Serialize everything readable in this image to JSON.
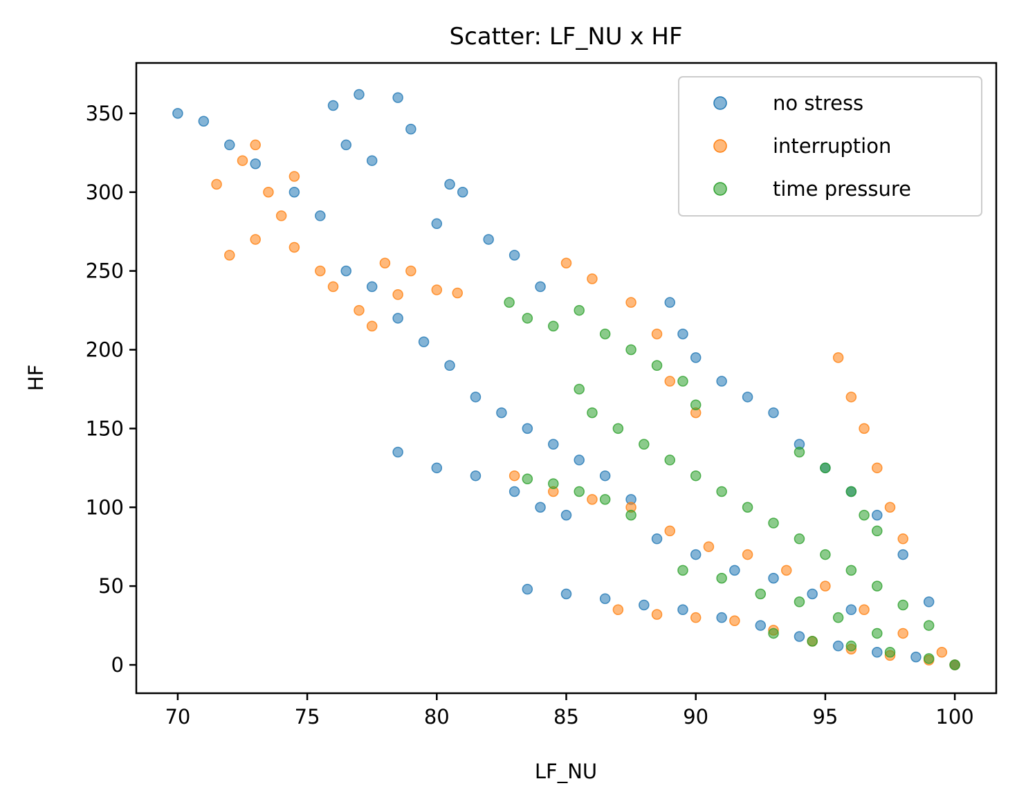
{
  "chart_data": {
    "type": "scatter",
    "title": "Scatter: LF_NU x HF",
    "xlabel": "LF_NU",
    "ylabel": "HF",
    "xlim": [
      68.4,
      101.6
    ],
    "ylim": [
      -18,
      382
    ],
    "x_ticks": [
      70,
      75,
      80,
      85,
      90,
      95,
      100
    ],
    "x_tick_labels": [
      "70",
      "75",
      "80",
      "85",
      "90",
      "95",
      "100"
    ],
    "y_ticks": [
      0,
      50,
      100,
      150,
      200,
      250,
      300,
      350
    ],
    "y_tick_labels": [
      "0",
      "50",
      "100",
      "150",
      "200",
      "250",
      "300",
      "350"
    ],
    "grid": false,
    "legend_position": "top-right",
    "series": [
      {
        "name": "no stress",
        "color": "#1f77b4",
        "points": [
          [
            70.0,
            350
          ],
          [
            71.0,
            345
          ],
          [
            72.0,
            330
          ],
          [
            73.0,
            318
          ],
          [
            74.5,
            300
          ],
          [
            75.5,
            285
          ],
          [
            76.0,
            355
          ],
          [
            77.0,
            362
          ],
          [
            76.5,
            330
          ],
          [
            77.5,
            320
          ],
          [
            78.5,
            360
          ],
          [
            79.0,
            340
          ],
          [
            80.5,
            305
          ],
          [
            81.0,
            300
          ],
          [
            80.0,
            280
          ],
          [
            82.0,
            270
          ],
          [
            83.0,
            260
          ],
          [
            84.0,
            240
          ],
          [
            76.5,
            250
          ],
          [
            77.5,
            240
          ],
          [
            78.5,
            220
          ],
          [
            79.5,
            205
          ],
          [
            80.5,
            190
          ],
          [
            81.5,
            170
          ],
          [
            82.5,
            160
          ],
          [
            83.5,
            150
          ],
          [
            84.5,
            140
          ],
          [
            85.5,
            130
          ],
          [
            86.5,
            120
          ],
          [
            87.5,
            105
          ],
          [
            89.0,
            230
          ],
          [
            89.5,
            210
          ],
          [
            90.0,
            195
          ],
          [
            91.0,
            180
          ],
          [
            92.0,
            170
          ],
          [
            93.0,
            160
          ],
          [
            94.0,
            140
          ],
          [
            95.0,
            125
          ],
          [
            96.0,
            110
          ],
          [
            97.0,
            95
          ],
          [
            98.0,
            70
          ],
          [
            99.0,
            40
          ],
          [
            78.5,
            135
          ],
          [
            80.0,
            125
          ],
          [
            81.5,
            120
          ],
          [
            83.0,
            110
          ],
          [
            84.0,
            100
          ],
          [
            85.0,
            95
          ],
          [
            83.5,
            48
          ],
          [
            85.0,
            45
          ],
          [
            86.5,
            42
          ],
          [
            88.0,
            38
          ],
          [
            89.5,
            35
          ],
          [
            91.0,
            30
          ],
          [
            92.5,
            25
          ],
          [
            94.0,
            18
          ],
          [
            95.5,
            12
          ],
          [
            97.0,
            8
          ],
          [
            98.5,
            5
          ],
          [
            100.0,
            0
          ],
          [
            88.5,
            80
          ],
          [
            90.0,
            70
          ],
          [
            91.5,
            60
          ],
          [
            93.0,
            55
          ],
          [
            94.5,
            45
          ],
          [
            96.0,
            35
          ]
        ]
      },
      {
        "name": "interruption",
        "color": "#ff7f0e",
        "points": [
          [
            71.5,
            305
          ],
          [
            72.5,
            320
          ],
          [
            73.0,
            330
          ],
          [
            73.5,
            300
          ],
          [
            74.0,
            285
          ],
          [
            74.5,
            310
          ],
          [
            72.0,
            260
          ],
          [
            73.0,
            270
          ],
          [
            74.5,
            265
          ],
          [
            75.5,
            250
          ],
          [
            76.0,
            240
          ],
          [
            77.0,
            225
          ],
          [
            77.5,
            215
          ],
          [
            78.0,
            255
          ],
          [
            79.0,
            250
          ],
          [
            80.0,
            238
          ],
          [
            80.8,
            236
          ],
          [
            78.5,
            235
          ],
          [
            85.0,
            255
          ],
          [
            86.0,
            245
          ],
          [
            87.5,
            230
          ],
          [
            88.5,
            210
          ],
          [
            89.0,
            180
          ],
          [
            90.0,
            160
          ],
          [
            83.0,
            120
          ],
          [
            84.5,
            110
          ],
          [
            86.0,
            105
          ],
          [
            87.5,
            100
          ],
          [
            89.0,
            85
          ],
          [
            90.5,
            75
          ],
          [
            92.0,
            70
          ],
          [
            93.5,
            60
          ],
          [
            95.0,
            50
          ],
          [
            96.5,
            35
          ],
          [
            98.0,
            20
          ],
          [
            99.5,
            8
          ],
          [
            95.5,
            195
          ],
          [
            96.0,
            170
          ],
          [
            96.5,
            150
          ],
          [
            97.0,
            125
          ],
          [
            97.5,
            100
          ],
          [
            98.0,
            80
          ],
          [
            87.0,
            35
          ],
          [
            88.5,
            32
          ],
          [
            90.0,
            30
          ],
          [
            91.5,
            28
          ],
          [
            93.0,
            22
          ],
          [
            94.5,
            15
          ],
          [
            96.0,
            10
          ],
          [
            97.5,
            6
          ],
          [
            99.0,
            3
          ],
          [
            100.0,
            0
          ]
        ]
      },
      {
        "name": "time pressure",
        "color": "#2ca02c",
        "points": [
          [
            82.8,
            230
          ],
          [
            83.5,
            220
          ],
          [
            84.5,
            215
          ],
          [
            85.5,
            225
          ],
          [
            86.5,
            210
          ],
          [
            87.5,
            200
          ],
          [
            88.5,
            190
          ],
          [
            89.5,
            180
          ],
          [
            90.0,
            165
          ],
          [
            85.5,
            175
          ],
          [
            86.0,
            160
          ],
          [
            87.0,
            150
          ],
          [
            88.0,
            140
          ],
          [
            89.0,
            130
          ],
          [
            90.0,
            120
          ],
          [
            91.0,
            110
          ],
          [
            92.0,
            100
          ],
          [
            93.0,
            90
          ],
          [
            94.0,
            80
          ],
          [
            95.0,
            70
          ],
          [
            96.0,
            60
          ],
          [
            97.0,
            50
          ],
          [
            98.0,
            38
          ],
          [
            99.0,
            25
          ],
          [
            83.5,
            118
          ],
          [
            84.5,
            115
          ],
          [
            85.5,
            110
          ],
          [
            86.5,
            105
          ],
          [
            87.5,
            95
          ],
          [
            94.0,
            135
          ],
          [
            95.0,
            125
          ],
          [
            96.0,
            110
          ],
          [
            96.5,
            95
          ],
          [
            97.0,
            85
          ],
          [
            89.5,
            60
          ],
          [
            91.0,
            55
          ],
          [
            92.5,
            45
          ],
          [
            94.0,
            40
          ],
          [
            95.5,
            30
          ],
          [
            97.0,
            20
          ],
          [
            93.0,
            20
          ],
          [
            94.5,
            15
          ],
          [
            96.0,
            12
          ],
          [
            97.5,
            8
          ],
          [
            99.0,
            4
          ],
          [
            100.0,
            0
          ]
        ]
      }
    ]
  }
}
